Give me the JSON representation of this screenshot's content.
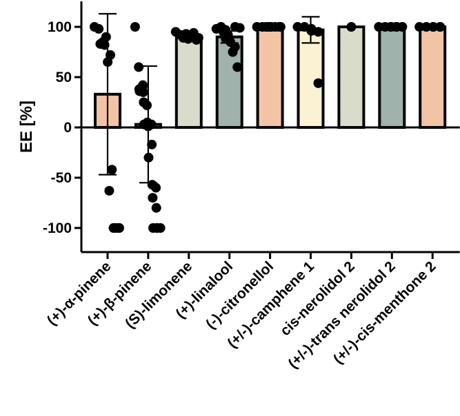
{
  "chart_data": {
    "type": "bar",
    "xlabel": "",
    "ylabel": "EE [%]",
    "ylim": [
      -120,
      125
    ],
    "yticks": [
      -100,
      -50,
      0,
      50,
      100
    ],
    "grid": false,
    "legend": "none",
    "categories": [
      "(+)-α-pinene",
      "(+)-β-pinene",
      "(S)-limonene",
      "(+)-linalool",
      "(-)-citronellol",
      "(+/-)-camphene 1",
      "cis-nerolidol 2",
      "(+/-)-trans nerolidol 2",
      "(+/-)-cis-menthone 2"
    ],
    "values": [
      33,
      3,
      91,
      90,
      100,
      97,
      100,
      100,
      100
    ],
    "error": [
      80,
      58,
      3,
      6,
      0,
      13,
      0,
      0,
      0
    ],
    "colors": [
      "#f2c4a5",
      "#f2c4a5",
      "#d9dccb",
      "#9fb2ac",
      "#f2c4a5",
      "#fbf2d4",
      "#d9dccb",
      "#9fb2ac",
      "#f2c4a5"
    ],
    "points": [
      [
        100,
        98,
        85,
        83,
        82,
        84,
        90,
        72,
        65,
        -42,
        -63,
        -100,
        -100,
        -100,
        -100
      ],
      [
        100,
        60,
        40,
        38,
        42,
        36,
        35,
        22,
        25,
        5,
        3,
        3,
        3,
        1,
        -17,
        -30,
        -57,
        -60,
        -70,
        -80,
        -100,
        -100,
        -100,
        -100
      ],
      [
        95,
        92,
        90,
        89,
        88,
        93,
        91,
        90,
        94,
        89,
        87
      ],
      [
        98,
        100,
        97,
        95,
        92,
        88,
        85,
        80,
        75,
        60,
        100,
        99
      ],
      [
        100,
        100,
        100,
        100,
        100,
        100,
        100,
        100,
        100
      ],
      [
        100,
        100,
        98,
        96,
        95,
        44
      ],
      [
        100
      ],
      [
        100,
        100,
        100,
        100,
        100,
        100,
        100
      ],
      [
        100,
        100,
        100,
        100,
        100,
        100
      ]
    ]
  }
}
